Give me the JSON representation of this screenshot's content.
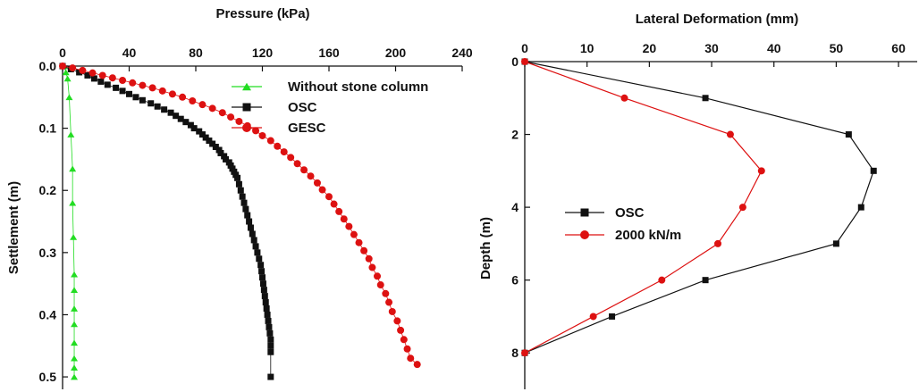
{
  "chart_data": [
    {
      "type": "scatter",
      "xlabel": "Pressure (kPa)",
      "ylabel": "Settlement (m)",
      "xlim": [
        0,
        240
      ],
      "ylim": [
        0.0,
        0.52
      ],
      "x_axis_position": "top",
      "y_inverted": true,
      "xticks": [
        0,
        40,
        80,
        120,
        160,
        200,
        240
      ],
      "yticks": [
        0.0,
        0.1,
        0.2,
        0.3,
        0.4,
        0.5
      ],
      "xtick_labels": [
        "0",
        "40",
        "80",
        "120",
        "160",
        "200",
        "240"
      ],
      "ytick_labels": [
        "0.0",
        "0.1",
        "0.2",
        "0.3",
        "0.4",
        "0.5"
      ],
      "legend_position": "top-right",
      "grid": false,
      "series": [
        {
          "name": "Without stone column",
          "color": "#22dd22",
          "marker": "triangle",
          "points": [
            [
              1,
              0.0
            ],
            [
              2,
              0.01
            ],
            [
              3,
              0.02
            ],
            [
              4,
              0.05
            ],
            [
              5,
              0.11
            ],
            [
              6,
              0.165
            ],
            [
              6,
              0.22
            ],
            [
              6.5,
              0.275
            ],
            [
              7,
              0.335
            ],
            [
              7,
              0.36
            ],
            [
              7,
              0.39
            ],
            [
              7,
              0.415
            ],
            [
              7,
              0.445
            ],
            [
              7,
              0.47
            ],
            [
              7,
              0.485
            ],
            [
              7,
              0.5
            ]
          ]
        },
        {
          "name": "OSC",
          "color": "#111111",
          "marker": "square",
          "points": [
            [
              0,
              0.0
            ],
            [
              5,
              0.005
            ],
            [
              10,
              0.01
            ],
            [
              15,
              0.015
            ],
            [
              19,
              0.02
            ],
            [
              23,
              0.025
            ],
            [
              27,
              0.03
            ],
            [
              32,
              0.035
            ],
            [
              36,
              0.04
            ],
            [
              40,
              0.045
            ],
            [
              44,
              0.05
            ],
            [
              48,
              0.055
            ],
            [
              53,
              0.06
            ],
            [
              57,
              0.065
            ],
            [
              61,
              0.07
            ],
            [
              65,
              0.075
            ],
            [
              68,
              0.08
            ],
            [
              71,
              0.085
            ],
            [
              74,
              0.09
            ],
            [
              77,
              0.095
            ],
            [
              79,
              0.1
            ],
            [
              82,
              0.105
            ],
            [
              84,
              0.11
            ],
            [
              86,
              0.115
            ],
            [
              88,
              0.12
            ],
            [
              90,
              0.125
            ],
            [
              92,
              0.13
            ],
            [
              94,
              0.135
            ],
            [
              95,
              0.14
            ],
            [
              97,
              0.145
            ],
            [
              98,
              0.15
            ],
            [
              100,
              0.155
            ],
            [
              101,
              0.16
            ],
            [
              102,
              0.165
            ],
            [
              103,
              0.17
            ],
            [
              104,
              0.175
            ],
            [
              105,
              0.18
            ],
            [
              106,
              0.19
            ],
            [
              107,
              0.2
            ],
            [
              108,
              0.21
            ],
            [
              109,
              0.22
            ],
            [
              110,
              0.23
            ],
            [
              111,
              0.24
            ],
            [
              112,
              0.25
            ],
            [
              113,
              0.26
            ],
            [
              114,
              0.27
            ],
            [
              115,
              0.28
            ],
            [
              116,
              0.29
            ],
            [
              117,
              0.3
            ],
            [
              118,
              0.31
            ],
            [
              119,
              0.32
            ],
            [
              119.5,
              0.33
            ],
            [
              120,
              0.34
            ],
            [
              120.5,
              0.35
            ],
            [
              121,
              0.36
            ],
            [
              121.5,
              0.37
            ],
            [
              122,
              0.38
            ],
            [
              122.5,
              0.39
            ],
            [
              123,
              0.4
            ],
            [
              123.5,
              0.41
            ],
            [
              124,
              0.42
            ],
            [
              124.5,
              0.43
            ],
            [
              125,
              0.44
            ],
            [
              125,
              0.45
            ],
            [
              125,
              0.46
            ],
            [
              125,
              0.5
            ]
          ]
        },
        {
          "name": "GESC",
          "color": "#dd1111",
          "marker": "circle",
          "points": [
            [
              0,
              0.0
            ],
            [
              6,
              0.003
            ],
            [
              12,
              0.007
            ],
            [
              18,
              0.011
            ],
            [
              24,
              0.015
            ],
            [
              30,
              0.019
            ],
            [
              36,
              0.023
            ],
            [
              42,
              0.027
            ],
            [
              48,
              0.031
            ],
            [
              54,
              0.035
            ],
            [
              60,
              0.04
            ],
            [
              66,
              0.045
            ],
            [
              72,
              0.05
            ],
            [
              78,
              0.056
            ],
            [
              84,
              0.062
            ],
            [
              90,
              0.068
            ],
            [
              96,
              0.075
            ],
            [
              101,
              0.082
            ],
            [
              106,
              0.089
            ],
            [
              111,
              0.096
            ],
            [
              116,
              0.104
            ],
            [
              120,
              0.112
            ],
            [
              125,
              0.12
            ],
            [
              129,
              0.129
            ],
            [
              133,
              0.138
            ],
            [
              137,
              0.147
            ],
            [
              141,
              0.157
            ],
            [
              145,
              0.167
            ],
            [
              149,
              0.177
            ],
            [
              153,
              0.188
            ],
            [
              156,
              0.199
            ],
            [
              160,
              0.21
            ],
            [
              163,
              0.222
            ],
            [
              166,
              0.234
            ],
            [
              169,
              0.246
            ],
            [
              172,
              0.258
            ],
            [
              175,
              0.271
            ],
            [
              178,
              0.284
            ],
            [
              181,
              0.297
            ],
            [
              184,
              0.31
            ],
            [
              186,
              0.324
            ],
            [
              189,
              0.338
            ],
            [
              191,
              0.352
            ],
            [
              194,
              0.366
            ],
            [
              196,
              0.38
            ],
            [
              198,
              0.395
            ],
            [
              201,
              0.41
            ],
            [
              203,
              0.425
            ],
            [
              205,
              0.44
            ],
            [
              207,
              0.455
            ],
            [
              209,
              0.47
            ],
            [
              213,
              0.48
            ]
          ]
        }
      ]
    },
    {
      "type": "line",
      "xlabel": "Lateral Deformation (mm)",
      "ylabel": "Depth (m)",
      "xlim": [
        0,
        63
      ],
      "ylim": [
        0,
        9
      ],
      "x_axis_position": "top",
      "y_inverted": true,
      "xticks": [
        0,
        10,
        20,
        30,
        40,
        50,
        60
      ],
      "yticks": [
        0,
        2,
        4,
        6,
        8
      ],
      "xtick_labels": [
        "0",
        "10",
        "20",
        "30",
        "40",
        "50",
        "60"
      ],
      "ytick_labels": [
        "0",
        "2",
        "4",
        "6",
        "8"
      ],
      "legend_position": "center-left",
      "grid": false,
      "series": [
        {
          "name": "OSC",
          "color": "#111111",
          "marker": "square",
          "points": [
            [
              0,
              0
            ],
            [
              29,
              1
            ],
            [
              52,
              2
            ],
            [
              56,
              3
            ],
            [
              54,
              4
            ],
            [
              50,
              5
            ],
            [
              29,
              6
            ],
            [
              14,
              7
            ],
            [
              0,
              8
            ]
          ]
        },
        {
          "name": "2000 kN/m",
          "color": "#dd1111",
          "marker": "circle",
          "points": [
            [
              0,
              0
            ],
            [
              16,
              1
            ],
            [
              33,
              2
            ],
            [
              38,
              3
            ],
            [
              35,
              4
            ],
            [
              31,
              5
            ],
            [
              22,
              6
            ],
            [
              11,
              7
            ],
            [
              0,
              8
            ]
          ]
        }
      ]
    }
  ]
}
